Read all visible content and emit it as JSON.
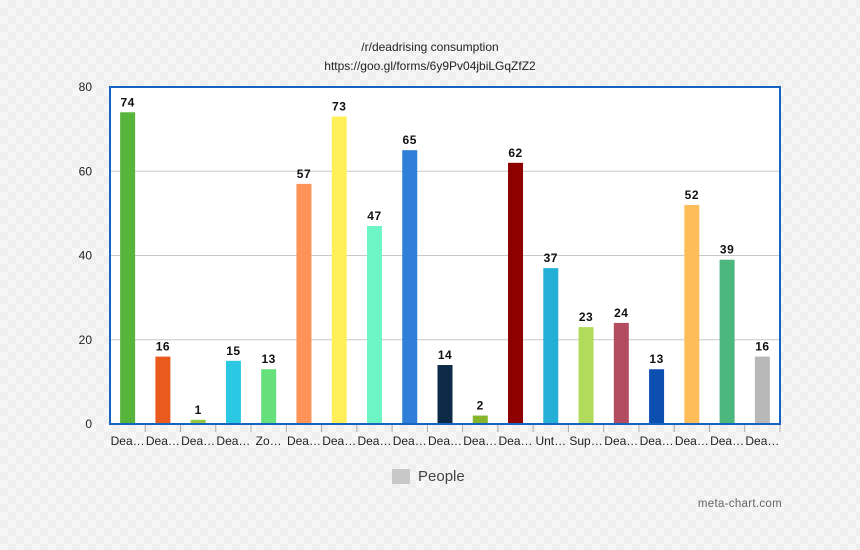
{
  "chart_data": {
    "type": "bar",
    "title": "/r/deadrising consumption",
    "subtitle": "https://goo.gl/forms/6y9Pv04jbiLGqZfZ2",
    "categories": [
      "Dea…",
      "Dea…",
      "Dea…",
      "Dea…",
      "Zo…",
      "Dea…",
      "Dea…",
      "Dea…",
      "Dea…",
      "Dea…",
      "Dea…",
      "Dea…",
      "Unt…",
      "Sup…",
      "Dea…",
      "Dea…",
      "Dea…",
      "Dea…",
      "Dea…"
    ],
    "series": [
      {
        "name": "People",
        "values": [
          74,
          16,
          1,
          15,
          13,
          57,
          73,
          47,
          65,
          14,
          2,
          62,
          37,
          23,
          24,
          13,
          52,
          39,
          16
        ],
        "colors": [
          "#58b53c",
          "#ea5a1e",
          "#94c73d",
          "#2bc8e4",
          "#66e07a",
          "#ff9358",
          "#fff05a",
          "#6ef5c5",
          "#2f7fd9",
          "#0d2a47",
          "#84b52d",
          "#8e0000",
          "#23afd6",
          "#b1db5a",
          "#b34c60",
          "#0d4fb1",
          "#ffbd5a",
          "#4cb87d",
          "#b8b8b8"
        ]
      }
    ],
    "ylim": [
      0,
      80
    ],
    "yticks": [
      0,
      20,
      40,
      60,
      80
    ],
    "grid": true,
    "legend_position": "bottom",
    "frame_color": "#1565c0"
  },
  "watermark": "meta-chart.com"
}
